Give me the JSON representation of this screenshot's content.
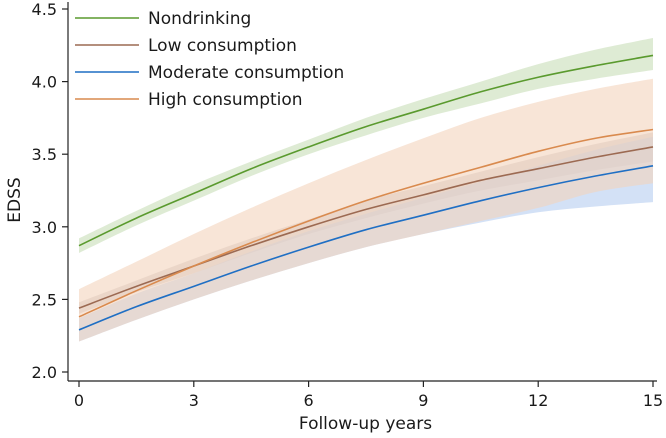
{
  "chart_data": {
    "type": "line",
    "title": "",
    "xlabel": "Follow-up years",
    "ylabel": "EDSS",
    "xlim": [
      0,
      15
    ],
    "ylim": [
      2.0,
      4.5
    ],
    "xticks": [
      0,
      3,
      6,
      9,
      12,
      15
    ],
    "xtick_labels": [
      "0",
      "3",
      "6",
      "9",
      "12",
      "15"
    ],
    "yticks": [
      2.0,
      2.5,
      3.0,
      3.5,
      4.0,
      4.5
    ],
    "ytick_labels": [
      "2.0",
      "2.5",
      "3.0",
      "3.5",
      "4.0",
      "4.5"
    ],
    "grid": false,
    "legend_position": "top-left",
    "x": [
      0,
      1.5,
      3,
      4.5,
      6,
      7.5,
      9,
      10.5,
      12,
      13.5,
      15
    ],
    "series": [
      {
        "name": "Nondrinking",
        "color": "#5a9a2e",
        "fill": "#c8ddb8",
        "values": [
          2.87,
          3.06,
          3.23,
          3.4,
          3.55,
          3.69,
          3.81,
          3.93,
          4.03,
          4.11,
          4.18
        ],
        "lower": [
          2.82,
          3.01,
          3.18,
          3.35,
          3.5,
          3.63,
          3.75,
          3.85,
          3.95,
          4.02,
          4.08
        ],
        "upper": [
          2.92,
          3.11,
          3.29,
          3.45,
          3.6,
          3.75,
          3.88,
          4.0,
          4.12,
          4.22,
          4.3
        ]
      },
      {
        "name": "Low consumption",
        "color": "#9c6a52",
        "fill": "#c9c1c0",
        "values": [
          2.44,
          2.59,
          2.73,
          2.87,
          3.0,
          3.12,
          3.22,
          3.32,
          3.4,
          3.48,
          3.55
        ],
        "lower": [
          2.4,
          2.55,
          2.68,
          2.82,
          2.95,
          3.06,
          3.16,
          3.25,
          3.32,
          3.39,
          3.45
        ],
        "upper": [
          2.48,
          2.63,
          2.78,
          2.92,
          3.05,
          3.18,
          3.28,
          3.38,
          3.48,
          3.57,
          3.65
        ]
      },
      {
        "name": "Moderate consumption",
        "color": "#1f6fc4",
        "fill": "#b6cdf0",
        "values": [
          2.29,
          2.45,
          2.59,
          2.73,
          2.86,
          2.98,
          3.08,
          3.18,
          3.27,
          3.35,
          3.42
        ],
        "lower": [
          2.21,
          2.36,
          2.5,
          2.63,
          2.75,
          2.86,
          2.95,
          3.03,
          3.1,
          3.14,
          3.17
        ],
        "upper": [
          2.37,
          2.54,
          2.68,
          2.83,
          2.97,
          3.09,
          3.2,
          3.31,
          3.42,
          3.53,
          3.62
        ]
      },
      {
        "name": "High consumption",
        "color": "#d98a4e",
        "fill": "#f3d3bd",
        "values": [
          2.38,
          2.56,
          2.73,
          2.89,
          3.04,
          3.18,
          3.3,
          3.41,
          3.52,
          3.61,
          3.67
        ],
        "lower": [
          2.21,
          2.36,
          2.5,
          2.63,
          2.75,
          2.86,
          2.95,
          3.04,
          3.13,
          3.24,
          3.3
        ],
        "upper": [
          2.57,
          2.76,
          2.95,
          3.13,
          3.3,
          3.46,
          3.61,
          3.75,
          3.86,
          3.95,
          4.02
        ]
      }
    ]
  }
}
